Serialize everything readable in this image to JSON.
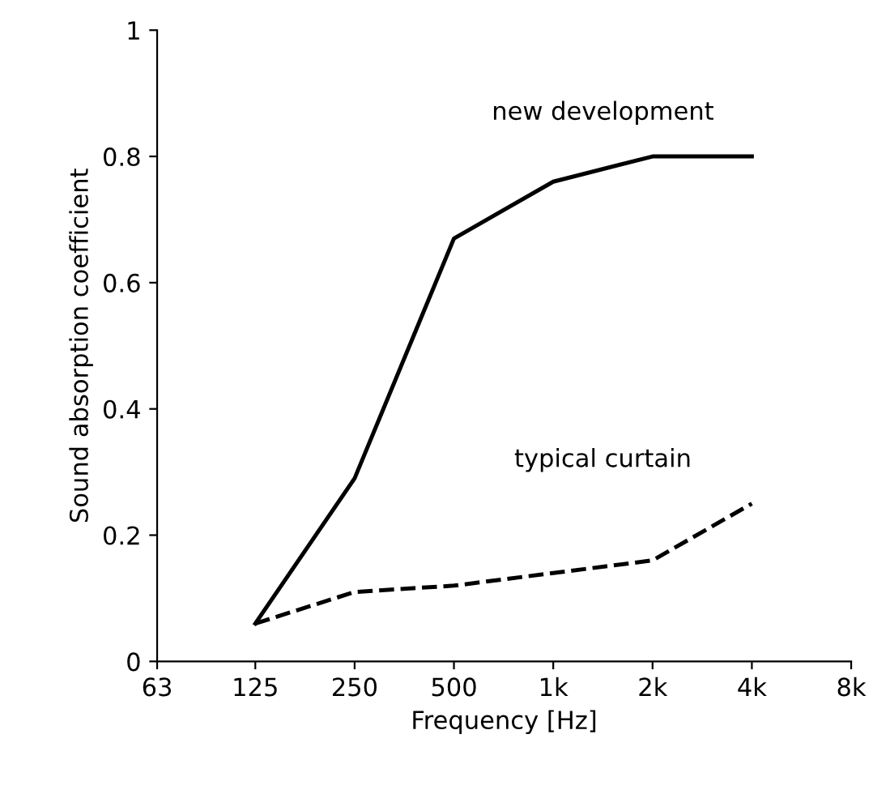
{
  "chart_data": {
    "type": "line",
    "xlabel": "Frequency [Hz]",
    "ylabel": "Sound absorption coefficient",
    "x": [
      125,
      250,
      500,
      1000,
      2000,
      4000
    ],
    "series": [
      {
        "name": "new development",
        "color": "#000000",
        "line_style": "solid",
        "values": [
          0.06,
          0.29,
          0.67,
          0.76,
          0.8,
          0.8
        ]
      },
      {
        "name": "typical curtain",
        "color": "#000000",
        "line_style": "dashed",
        "values": [
          0.06,
          0.11,
          0.12,
          0.14,
          0.16,
          0.25
        ]
      }
    ],
    "log": "x",
    "xlim": [
      63,
      8000
    ],
    "xticks": [
      63,
      125,
      250,
      500,
      {
        "value": 1000,
        "label": "1k"
      },
      {
        "value": 2000,
        "label": "2k"
      },
      {
        "value": 4000,
        "label": "4k"
      },
      {
        "value": 8000,
        "label": "8k"
      }
    ],
    "ylim": [
      0,
      1
    ],
    "yticks": [
      0,
      0.2,
      0.4,
      0.6,
      0.8,
      1
    ],
    "grid": false,
    "legend": false,
    "marker": "none"
  }
}
